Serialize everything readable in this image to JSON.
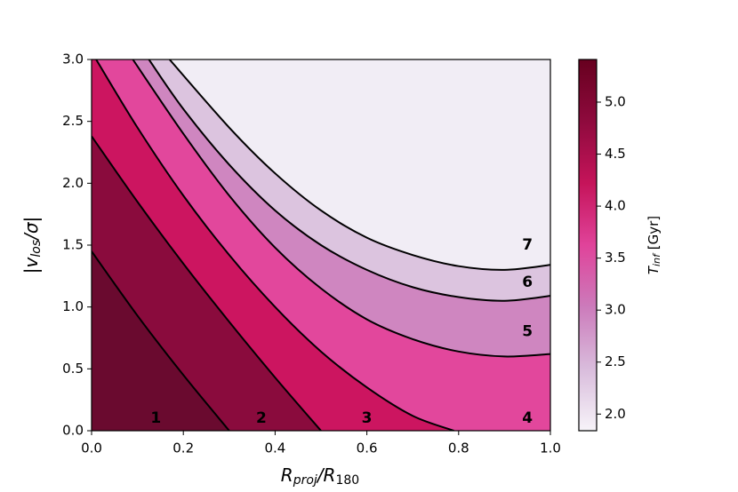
{
  "chart_data": {
    "type": "line",
    "xlabel": [
      "R",
      "proj",
      "/R",
      "180"
    ],
    "ylabel": [
      "|v",
      "los",
      "/σ|"
    ],
    "xlim": [
      0,
      1
    ],
    "ylim": [
      0,
      3
    ],
    "xticks": [
      {
        "value": 0,
        "label": "0.0"
      },
      {
        "value": 0.2,
        "label": "0.2"
      },
      {
        "value": 0.4,
        "label": "0.4"
      },
      {
        "value": 0.6,
        "label": "0.6"
      },
      {
        "value": 0.8,
        "label": "0.8"
      },
      {
        "value": 1,
        "label": "1.0"
      }
    ],
    "yticks": [
      {
        "value": 0,
        "label": "0.0"
      },
      {
        "value": 0.5,
        "label": "0.5"
      },
      {
        "value": 1,
        "label": "1.0"
      },
      {
        "value": 1.5,
        "label": "1.5"
      },
      {
        "value": 2,
        "label": "2.0"
      },
      {
        "value": 2.5,
        "label": "2.5"
      },
      {
        "value": 3,
        "label": "3.0"
      }
    ],
    "series": [
      {
        "color": "#000000",
        "x": [
          0,
          0.1,
          0.2,
          0.3
        ],
        "values": [
          1.45,
          0.93,
          0.45,
          0
        ]
      },
      {
        "color": "#000000",
        "x": [
          0,
          0.1,
          0.2,
          0.3,
          0.4,
          0.5
        ],
        "values": [
          2.38,
          1.85,
          1.35,
          0.88,
          0.43,
          0
        ]
      },
      {
        "color": "#000000",
        "x": [
          0.01,
          0.1,
          0.2,
          0.3,
          0.4,
          0.5,
          0.6,
          0.7,
          0.79
        ],
        "values": [
          3,
          2.45,
          1.9,
          1.42,
          1,
          0.64,
          0.35,
          0.12,
          0
        ]
      },
      {
        "color": "#000000",
        "x": [
          0.09,
          0.2,
          0.3,
          0.4,
          0.5,
          0.6,
          0.7,
          0.8,
          0.9,
          1
        ],
        "values": [
          3,
          2.4,
          1.9,
          1.48,
          1.15,
          0.9,
          0.74,
          0.64,
          0.6,
          0.62
        ]
      },
      {
        "color": "#000000",
        "x": [
          0.125,
          0.2,
          0.3,
          0.4,
          0.5,
          0.6,
          0.7,
          0.8,
          0.9,
          1
        ],
        "values": [
          3,
          2.6,
          2.15,
          1.78,
          1.5,
          1.3,
          1.16,
          1.08,
          1.05,
          1.09
        ]
      },
      {
        "color": "#000000",
        "x": [
          0.17,
          0.3,
          0.4,
          0.5,
          0.6,
          0.7,
          0.8,
          0.9,
          1
        ],
        "values": [
          3,
          2.45,
          2.08,
          1.78,
          1.56,
          1.42,
          1.33,
          1.3,
          1.34
        ]
      }
    ],
    "region_colors": [
      "#6a0a2f",
      "#8a0b3d",
      "#cc1560",
      "#e2479c",
      "#cf86c0",
      "#dcc4df",
      "#f1edf5"
    ],
    "annotations": [
      "1",
      "2",
      "3",
      "4",
      "5",
      "6",
      "7"
    ],
    "colorbar": {
      "label": [
        "T",
        "inf",
        " [Gyr]"
      ],
      "lim": [
        1.84,
        5.41
      ],
      "ticks": [
        {
          "value": 2,
          "label": "2.0"
        },
        {
          "value": 2.5,
          "label": "2.5"
        },
        {
          "value": 3,
          "label": "3.0"
        },
        {
          "value": 3.5,
          "label": "3.5"
        },
        {
          "value": 4,
          "label": "4.0"
        },
        {
          "value": 4.5,
          "label": "4.5"
        },
        {
          "value": 5,
          "label": "5.0"
        }
      ],
      "colors": [
        "#f7f4f9",
        "#d9bcdc",
        "#cc7bbb",
        "#e0439a",
        "#c5145a",
        "#8e0a3d",
        "#67001f"
      ]
    }
  }
}
